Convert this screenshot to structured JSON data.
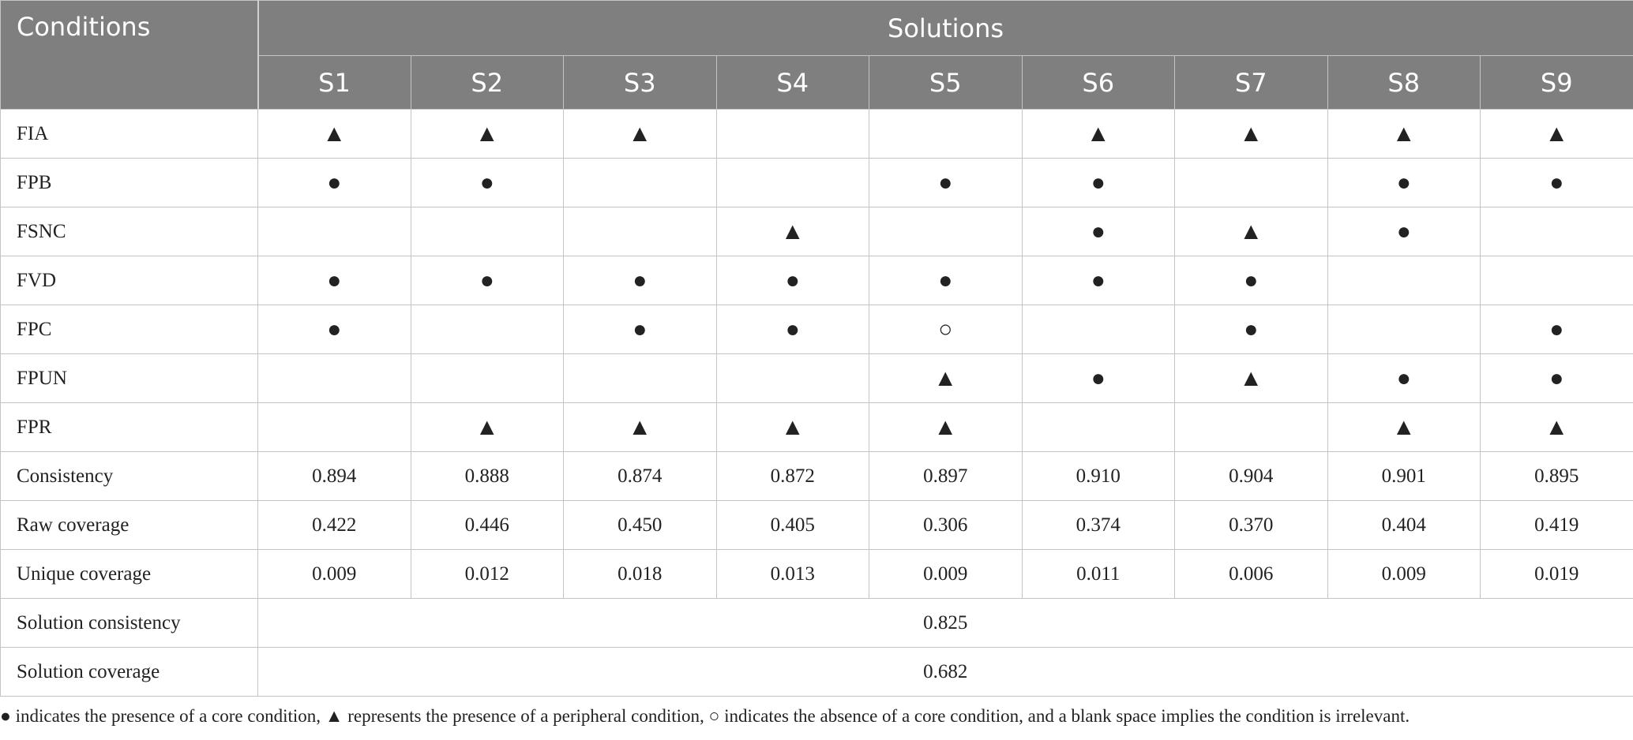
{
  "table": {
    "header": {
      "conditions": "Conditions",
      "solutions": "Solutions",
      "columns": [
        "S1",
        "S2",
        "S3",
        "S4",
        "S5",
        "S6",
        "S7",
        "S8",
        "S9"
      ]
    },
    "rows": [
      {
        "label": "FIA",
        "cells": [
          "▲",
          "▲",
          "▲",
          null,
          null,
          "▲",
          "▲",
          "▲",
          "▲"
        ]
      },
      {
        "label": "FPB",
        "cells": [
          "●",
          "●",
          null,
          null,
          "●",
          "●",
          null,
          "●",
          "●"
        ]
      },
      {
        "label": "FSNC",
        "cells": [
          null,
          null,
          null,
          "▲",
          null,
          "●",
          "▲",
          "●",
          null
        ]
      },
      {
        "label": "FVD",
        "cells": [
          "●",
          "●",
          "●",
          "●",
          "●",
          "●",
          "●",
          null,
          null
        ]
      },
      {
        "label": "FPC",
        "cells": [
          "●",
          null,
          "●",
          "●",
          "○",
          null,
          "●",
          null,
          "●"
        ]
      },
      {
        "label": "FPUN",
        "cells": [
          null,
          null,
          null,
          null,
          "▲",
          "●",
          "▲",
          "●",
          "●"
        ]
      },
      {
        "label": "FPR",
        "cells": [
          null,
          "▲",
          "▲",
          "▲",
          "▲",
          null,
          null,
          "▲",
          "▲"
        ]
      },
      {
        "label": "Consistency",
        "cells": [
          "0.894",
          "0.888",
          "0.874",
          "0.872",
          "0.897",
          "0.910",
          "0.904",
          "0.901",
          "0.895"
        ]
      },
      {
        "label": "Raw coverage",
        "cells": [
          "0.422",
          "0.446",
          "0.450",
          "0.405",
          "0.306",
          "0.374",
          "0.370",
          "0.404",
          "0.419"
        ]
      },
      {
        "label": "Unique coverage",
        "cells": [
          "0.009",
          "0.012",
          "0.018",
          "0.013",
          "0.009",
          "0.011",
          "0.006",
          "0.009",
          "0.019"
        ]
      }
    ],
    "summary": [
      {
        "label": "Solution consistency",
        "value": "0.825"
      },
      {
        "label": "Solution coverage",
        "value": "0.682"
      }
    ]
  },
  "footnote": "● indicates the presence of a core condition, ▲ represents the presence of a peripheral condition, ○ indicates the absence of a core condition, and a blank space implies the condition is irrelevant."
}
